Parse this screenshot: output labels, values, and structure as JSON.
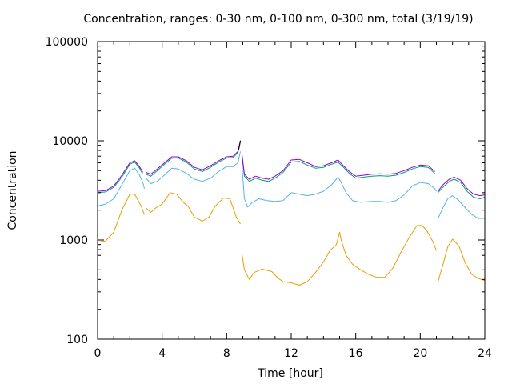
{
  "chart_data": {
    "type": "line",
    "title": "Concentration, ranges: 0-30 nm, 0-100 nm, 0-300 nm, total (3/19/19)",
    "xlabel": "Time [hour]",
    "ylabel": "Concentration",
    "xlim": [
      0,
      24
    ],
    "ylim": [
      100,
      100000
    ],
    "yscale": "log",
    "grid": false,
    "xticks": [
      0,
      4,
      8,
      12,
      16,
      20,
      24
    ],
    "xtick_labels": [
      "0",
      "4",
      "8",
      "12",
      "16",
      "20",
      "24"
    ],
    "yticks": [
      100,
      1000,
      10000,
      100000
    ],
    "ytick_labels": [
      "100",
      "1000",
      "10000",
      "100000"
    ],
    "series": [
      {
        "color": "#e69f00",
        "segments": [
          {
            "x": [
              0,
              0.5,
              1.0,
              1.5,
              2.0,
              2.3,
              2.7,
              2.9
            ],
            "y": [
              950,
              980,
              1200,
              2000,
              2900,
              2900,
              2200,
              1800
            ]
          },
          {
            "x": [
              3.0,
              3.3,
              3.6,
              4.0,
              4.5,
              4.9,
              5.3,
              5.6,
              6.0,
              6.5,
              6.9,
              7.3,
              7.8,
              8.2,
              8.6,
              8.85
            ],
            "y": [
              2100,
              1900,
              2100,
              2300,
              3000,
              2900,
              2400,
              2200,
              1700,
              1550,
              1700,
              2200,
              2650,
              2600,
              1700,
              1450
            ]
          },
          {
            "x": [
              8.95,
              9.1,
              9.4,
              9.7,
              10.2,
              10.8,
              11.2,
              11.5,
              12.0,
              12.5,
              13.0,
              13.5,
              14.0,
              14.4,
              14.8,
              15.0,
              15.1,
              15.4,
              15.8,
              16.3,
              16.8,
              17.3,
              17.8,
              18.3,
              18.8,
              19.3,
              19.8,
              20.1,
              20.4,
              20.8,
              21.0
            ],
            "y": [
              720,
              500,
              400,
              470,
              510,
              480,
              410,
              380,
              370,
              350,
              380,
              470,
              600,
              780,
              900,
              1200,
              1000,
              700,
              570,
              500,
              450,
              420,
              420,
              520,
              750,
              1050,
              1400,
              1400,
              1250,
              950,
              780
            ]
          },
          {
            "x": [
              21.1,
              21.4,
              21.7,
              22.0,
              22.4,
              22.8,
              23.2,
              23.6,
              24.0
            ],
            "y": [
              380,
              560,
              850,
              1020,
              870,
              580,
              450,
              410,
              390
            ]
          }
        ]
      },
      {
        "color": "#56b4e9",
        "segments": [
          {
            "x": [
              0,
              0.5,
              1.0,
              1.5,
              2.0,
              2.3,
              2.6,
              2.8,
              2.9
            ],
            "y": [
              2200,
              2300,
              2600,
              3600,
              5000,
              5300,
              4500,
              3800,
              3300
            ]
          },
          {
            "x": [
              3.0,
              3.3,
              3.7,
              4.2,
              4.6,
              5.0,
              5.5,
              6.0,
              6.5,
              7.0,
              7.5,
              8.0,
              8.4,
              8.7,
              8.85
            ],
            "y": [
              4200,
              3700,
              3900,
              4600,
              5300,
              5200,
              4700,
              4100,
              3900,
              4200,
              4900,
              5500,
              5500,
              6000,
              7800
            ]
          },
          {
            "x": [
              8.95,
              9.1,
              9.3,
              9.6,
              10.0,
              10.5,
              11.0,
              11.5,
              12.0,
              12.5,
              13.0,
              13.5,
              14.0,
              14.5,
              14.9,
              15.1,
              15.4,
              15.8,
              16.3,
              17.0,
              17.5,
              18.0,
              18.5,
              19.0,
              19.5,
              20.0,
              20.5,
              20.9,
              21.0
            ],
            "y": [
              5500,
              2600,
              2150,
              2400,
              2600,
              2500,
              2450,
              2500,
              3000,
              2900,
              2800,
              2900,
              3100,
              3600,
              4300,
              3800,
              3000,
              2500,
              2400,
              2450,
              2450,
              2400,
              2500,
              2850,
              3500,
              3800,
              3700,
              3300,
              3100
            ]
          },
          {
            "x": [
              21.1,
              21.4,
              21.7,
              22.0,
              22.4,
              22.8,
              23.2,
              23.6,
              24.0
            ],
            "y": [
              1650,
              2100,
              2600,
              2800,
              2500,
              2100,
              1800,
              1650,
              1650
            ]
          }
        ]
      },
      {
        "color": "#009e73",
        "segments": [
          {
            "x": [
              0,
              0.5,
              1.0,
              1.5,
              2.0,
              2.3,
              2.6,
              2.8
            ],
            "y": [
              3000,
              3050,
              3400,
              4300,
              5800,
              6100,
              5300,
              4600
            ]
          },
          {
            "x": [
              3.0,
              3.3,
              3.7,
              4.2,
              4.6,
              5.0,
              5.5,
              6.0,
              6.5,
              7.0,
              7.5,
              8.0,
              8.4,
              8.7,
              8.85
            ],
            "y": [
              4600,
              4400,
              5000,
              5900,
              6700,
              6700,
              6100,
              5200,
              4900,
              5400,
              6100,
              6700,
              6800,
              7600,
              9800
            ]
          },
          {
            "x": [
              8.95,
              9.1,
              9.4,
              9.8,
              10.2,
              10.6,
              11.0,
              11.5,
              12.0,
              12.5,
              13.0,
              13.5,
              14.0,
              14.5,
              14.9,
              15.2,
              15.6,
              16.0,
              16.5,
              17.0,
              17.5,
              18.0,
              18.5,
              19.0,
              19.5,
              20.0,
              20.5,
              20.9
            ],
            "y": [
              7000,
              4400,
              3900,
              4200,
              4000,
              3900,
              4200,
              4800,
              6100,
              6200,
              5700,
              5300,
              5400,
              5800,
              6100,
              5500,
              4700,
              4200,
              4300,
              4400,
              4450,
              4400,
              4500,
              4800,
              5200,
              5500,
              5400,
              4700
            ]
          },
          {
            "x": [
              21.1,
              21.4,
              21.8,
              22.1,
              22.5,
              22.9,
              23.3,
              23.7,
              24.0
            ],
            "y": [
              3000,
              3400,
              3900,
              4100,
              3800,
              3100,
              2700,
              2600,
              2700
            ]
          }
        ]
      },
      {
        "color": "#9400d3",
        "segments": [
          {
            "x": [
              0,
              0.5,
              1.0,
              1.5,
              2.0,
              2.3,
              2.6,
              2.8
            ],
            "y": [
              3100,
              3150,
              3500,
              4500,
              6000,
              6300,
              5500,
              4800
            ]
          },
          {
            "x": [
              3.0,
              3.3,
              3.7,
              4.2,
              4.6,
              5.0,
              5.5,
              6.0,
              6.5,
              7.0,
              7.5,
              8.0,
              8.4,
              8.7,
              8.85
            ],
            "y": [
              4800,
              4600,
              5200,
              6100,
              6900,
              6900,
              6300,
              5400,
              5100,
              5600,
              6300,
              6900,
              7000,
              7800,
              10100
            ]
          },
          {
            "x": [
              8.95,
              9.1,
              9.4,
              9.8,
              10.2,
              10.6,
              11.0,
              11.5,
              12.0,
              12.5,
              13.0,
              13.5,
              14.0,
              14.5,
              14.9,
              15.2,
              15.6,
              16.0,
              16.5,
              17.0,
              17.5,
              18.0,
              18.5,
              19.0,
              19.5,
              20.0,
              20.5,
              20.9
            ],
            "y": [
              7300,
              4600,
              4100,
              4400,
              4200,
              4100,
              4400,
              5000,
              6400,
              6500,
              6000,
              5500,
              5600,
              6000,
              6400,
              5700,
              4900,
              4400,
              4500,
              4600,
              4650,
              4600,
              4700,
              5000,
              5400,
              5700,
              5600,
              4900
            ]
          },
          {
            "x": [
              21.1,
              21.4,
              21.8,
              22.1,
              22.5,
              22.9,
              23.3,
              23.7,
              24.0
            ],
            "y": [
              3100,
              3600,
              4100,
              4300,
              4000,
              3300,
              2900,
              2800,
              2850
            ]
          }
        ]
      },
      {
        "color": "#000000",
        "segments": [
          {
            "x": [
              8.75,
              8.8,
              8.85
            ],
            "y": [
              8200,
              9000,
              10000
            ]
          }
        ]
      }
    ]
  }
}
